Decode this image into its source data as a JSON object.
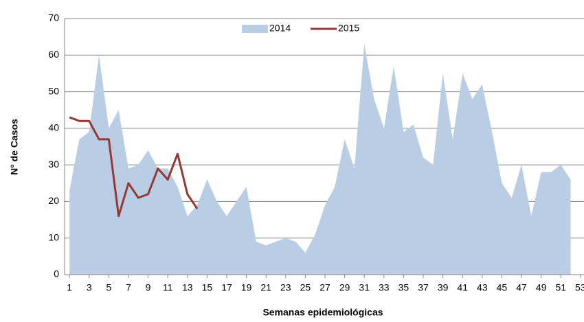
{
  "chart_data": {
    "type": "area_line",
    "xlabel": "Semanas epidemiológicas",
    "ylabel": "N° de Casos",
    "x": [
      1,
      2,
      3,
      4,
      5,
      6,
      7,
      8,
      9,
      10,
      11,
      12,
      13,
      14,
      15,
      16,
      17,
      18,
      19,
      20,
      21,
      22,
      23,
      24,
      25,
      26,
      27,
      28,
      29,
      30,
      31,
      32,
      33,
      34,
      35,
      36,
      37,
      38,
      39,
      40,
      41,
      42,
      43,
      44,
      45,
      46,
      47,
      48,
      49,
      50,
      51,
      52
    ],
    "series": [
      {
        "name": "2014",
        "type": "area",
        "color": "#b9cde5",
        "values": [
          23,
          37,
          39,
          60,
          40,
          45,
          29,
          30,
          34,
          29,
          29,
          24,
          16,
          19,
          26,
          20,
          16,
          20,
          24,
          9,
          8,
          9,
          10,
          9,
          6,
          11,
          19,
          24,
          37,
          29,
          63,
          48,
          40,
          57,
          39,
          41,
          32,
          30,
          55,
          37,
          55,
          48,
          52,
          39,
          25,
          21,
          30,
          16,
          28,
          28,
          30,
          26
        ]
      },
      {
        "name": "2015",
        "type": "line",
        "color": "#953735",
        "values": [
          43,
          42,
          42,
          37,
          37,
          16,
          25,
          21,
          22,
          29,
          26,
          33,
          22,
          18,
          null,
          null,
          null,
          null,
          null,
          null,
          null,
          null,
          null,
          null,
          null,
          null,
          null,
          null,
          null,
          null,
          null,
          null,
          null,
          null,
          null,
          null,
          null,
          null,
          null,
          null,
          null,
          null,
          null,
          null,
          null,
          null,
          null,
          null,
          null,
          null,
          null,
          null
        ]
      }
    ],
    "xlim": [
      0.5,
      53.5
    ],
    "xticks": [
      1,
      3,
      5,
      7,
      9,
      11,
      13,
      15,
      17,
      19,
      21,
      23,
      25,
      27,
      29,
      31,
      33,
      35,
      37,
      39,
      41,
      43,
      45,
      47,
      49,
      51,
      53
    ],
    "ylim": [
      0,
      70
    ],
    "yticks": [
      0,
      10,
      20,
      30,
      40,
      50,
      60,
      70
    ],
    "grid": true,
    "legend": "top"
  }
}
